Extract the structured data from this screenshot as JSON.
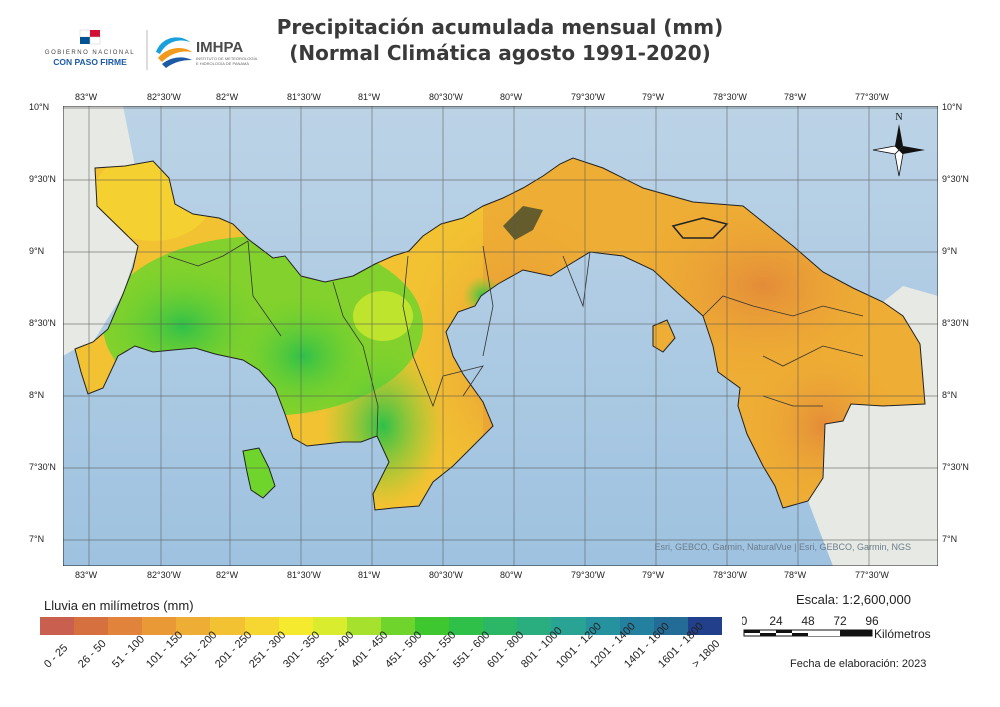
{
  "title": {
    "line1": "Precipitación acumulada mensual (mm)",
    "line2": "(Normal Climática agosto 1991-2020)"
  },
  "logos": {
    "gobierno_top": "GOBIERNO NACIONAL",
    "gobierno_bottom": "CON PASO FIRME",
    "imhpa_name": "IMHPA",
    "imhpa_sub1": "INSTITUTO DE METEOROLOGÍA",
    "imhpa_sub2": "E HIDROLOGÍA DE PANAMÁ"
  },
  "map": {
    "top_ticks": [
      "83°W",
      "82°30'W",
      "82°W",
      "81°30'W",
      "81°W",
      "80°30'W",
      "80°W",
      "79°30'W",
      "79°W",
      "78°30'W",
      "78°W",
      "77°30'W"
    ],
    "left_ticks": [
      "10°N",
      "9°30'N",
      "9°N",
      "8°30'N",
      "8°N",
      "7°30'N",
      "7°N"
    ],
    "right_ticks": [
      "10°N",
      "9°30'N",
      "9°N",
      "8°30'N",
      "8°N",
      "7°30'N",
      "7°N"
    ],
    "north_label": "N",
    "attribution": "Esri, GEBCO, Garmin, NaturalVue | Esri, GEBCO, Garmin, NGS"
  },
  "legend": {
    "title": "Lluvia en milímetros (mm)",
    "classes": [
      {
        "label": "0 - 25",
        "color": "#c9604f"
      },
      {
        "label": "26 - 50",
        "color": "#d7703f"
      },
      {
        "label": "51 - 100",
        "color": "#e1833a"
      },
      {
        "label": "101 - 150",
        "color": "#e99a36"
      },
      {
        "label": "151 - 200",
        "color": "#eead34"
      },
      {
        "label": "201 - 250",
        "color": "#f2c232"
      },
      {
        "label": "251 - 300",
        "color": "#f6d630"
      },
      {
        "label": "301 - 350",
        "color": "#f6ea2f"
      },
      {
        "label": "351 - 400",
        "color": "#d9ec2e"
      },
      {
        "label": "401 - 450",
        "color": "#a6e22d"
      },
      {
        "label": "451 - 500",
        "color": "#6fd42c"
      },
      {
        "label": "501 - 550",
        "color": "#3fc72f"
      },
      {
        "label": "551 - 600",
        "color": "#2fc04a"
      },
      {
        "label": "601 - 800",
        "color": "#2cb767"
      },
      {
        "label": "801 - 1000",
        "color": "#2aae80"
      },
      {
        "label": "1001 - 1200",
        "color": "#28a394"
      },
      {
        "label": "1201 - 1400",
        "color": "#26929f"
      },
      {
        "label": "1401 - 1600",
        "color": "#24809f"
      },
      {
        "label": "1601 - 1800",
        "color": "#236c97"
      },
      {
        "label": "> 1800",
        "color": "#213f8a"
      }
    ]
  },
  "scale": {
    "text": "Escala: 1:2,600,000",
    "ticks": [
      "0",
      "24",
      "48",
      "72",
      "96"
    ],
    "unit": "Kilómetros"
  },
  "date_text": "Fecha de elaboración: 2023"
}
